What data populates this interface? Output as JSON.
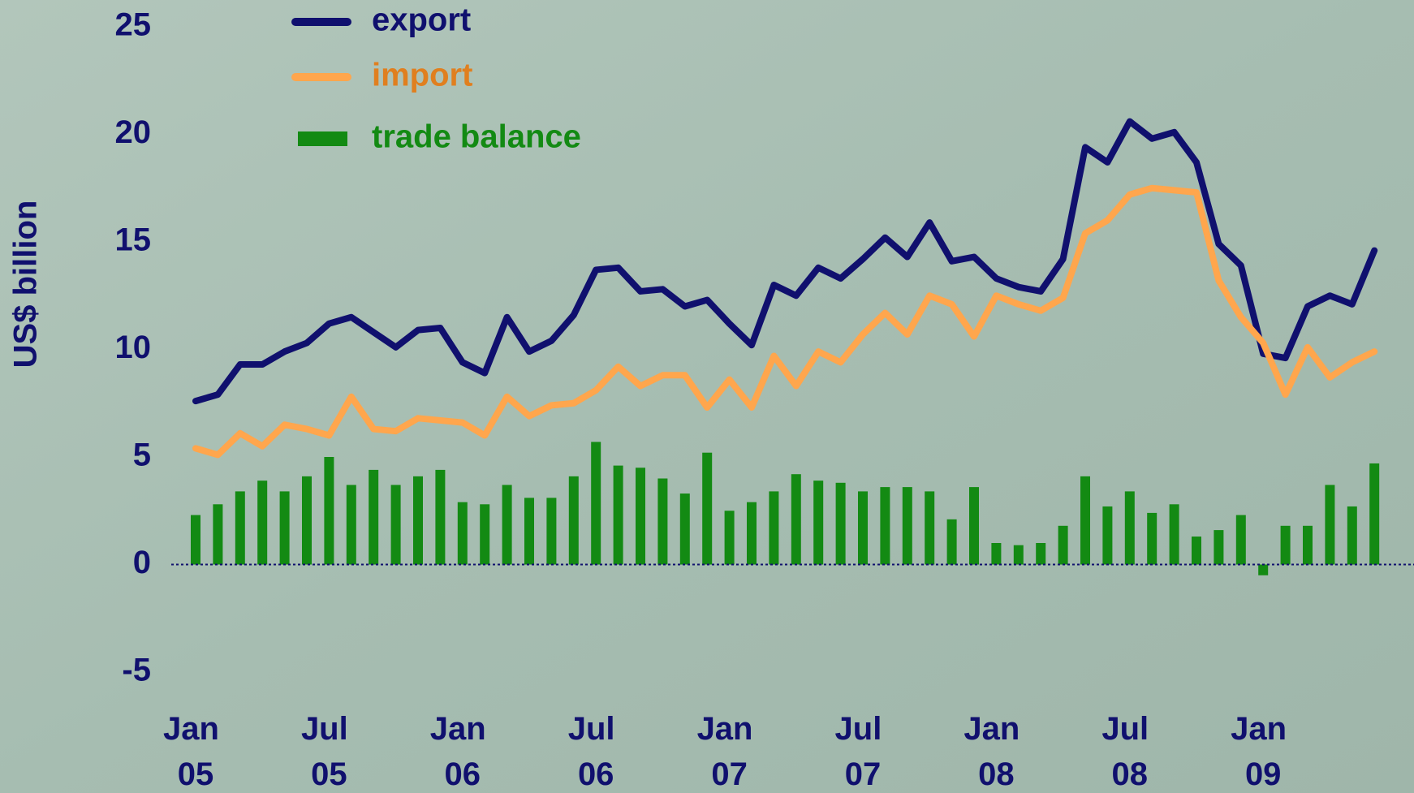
{
  "chart_data": {
    "type": "line",
    "ylabel": "US$ billion",
    "categories": [
      "Jan 05",
      null,
      null,
      null,
      null,
      null,
      "Jul 05",
      null,
      null,
      null,
      null,
      null,
      "Jan 06",
      null,
      null,
      null,
      null,
      null,
      "Jul 06",
      null,
      null,
      null,
      null,
      null,
      "Jan 07",
      null,
      null,
      null,
      null,
      null,
      "Jul 07",
      null,
      null,
      null,
      null,
      null,
      "Jan 08",
      null,
      null,
      null,
      null,
      null,
      "Jul 08",
      null,
      null,
      null,
      null,
      null,
      "Jan 09",
      null,
      null,
      null,
      null,
      null
    ],
    "series": [
      {
        "name": "export",
        "type": "line",
        "color": "#10106e",
        "values": [
          7.6,
          7.9,
          9.3,
          9.3,
          9.9,
          10.3,
          11.2,
          11.5,
          10.8,
          10.1,
          10.9,
          11.0,
          9.4,
          8.9,
          11.5,
          9.9,
          10.4,
          11.6,
          13.7,
          13.8,
          12.7,
          12.8,
          12.0,
          12.3,
          11.2,
          10.2,
          13.0,
          12.5,
          13.8,
          13.3,
          14.2,
          15.2,
          14.3,
          15.9,
          14.1,
          14.3,
          13.3,
          12.9,
          12.7,
          14.2,
          19.4,
          18.7,
          20.6,
          19.8,
          20.1,
          18.7,
          14.9,
          13.9,
          9.8,
          9.6,
          12.0,
          12.5,
          12.1,
          14.6
        ]
      },
      {
        "name": "import",
        "type": "line",
        "color": "#ffa64d",
        "values": [
          5.4,
          5.1,
          6.1,
          5.5,
          6.5,
          6.3,
          6.0,
          7.8,
          6.3,
          6.2,
          6.8,
          6.7,
          6.6,
          6.0,
          7.8,
          6.9,
          7.4,
          7.5,
          8.1,
          9.2,
          8.3,
          8.8,
          8.8,
          7.3,
          8.6,
          7.3,
          9.7,
          8.3,
          9.9,
          9.4,
          10.7,
          11.7,
          10.7,
          12.5,
          12.1,
          10.6,
          12.5,
          12.1,
          11.8,
          12.4,
          15.4,
          16.0,
          17.2,
          17.5,
          17.4,
          17.3,
          13.2,
          11.5,
          10.3,
          7.9,
          10.1,
          8.7,
          9.4,
          9.9
        ]
      },
      {
        "name": "trade balance",
        "type": "bar",
        "color": "#138a13",
        "values": [
          2.3,
          2.8,
          3.4,
          3.9,
          3.4,
          4.1,
          5.0,
          3.7,
          4.4,
          3.7,
          4.1,
          4.4,
          2.9,
          2.8,
          3.7,
          3.1,
          3.1,
          4.1,
          5.7,
          4.6,
          4.5,
          4.0,
          3.3,
          5.2,
          2.5,
          2.9,
          3.4,
          4.2,
          3.9,
          3.8,
          3.4,
          3.6,
          3.6,
          3.4,
          2.1,
          3.6,
          1.0,
          0.9,
          1.0,
          1.8,
          4.1,
          2.7,
          3.4,
          2.4,
          2.8,
          1.3,
          1.6,
          2.3,
          -0.5,
          1.8,
          1.8,
          3.7,
          2.7,
          4.7
        ]
      }
    ],
    "ylim": [
      -5,
      25
    ],
    "yticks": [
      -5,
      0,
      5,
      10,
      15,
      20,
      25
    ],
    "zero_line": true
  }
}
